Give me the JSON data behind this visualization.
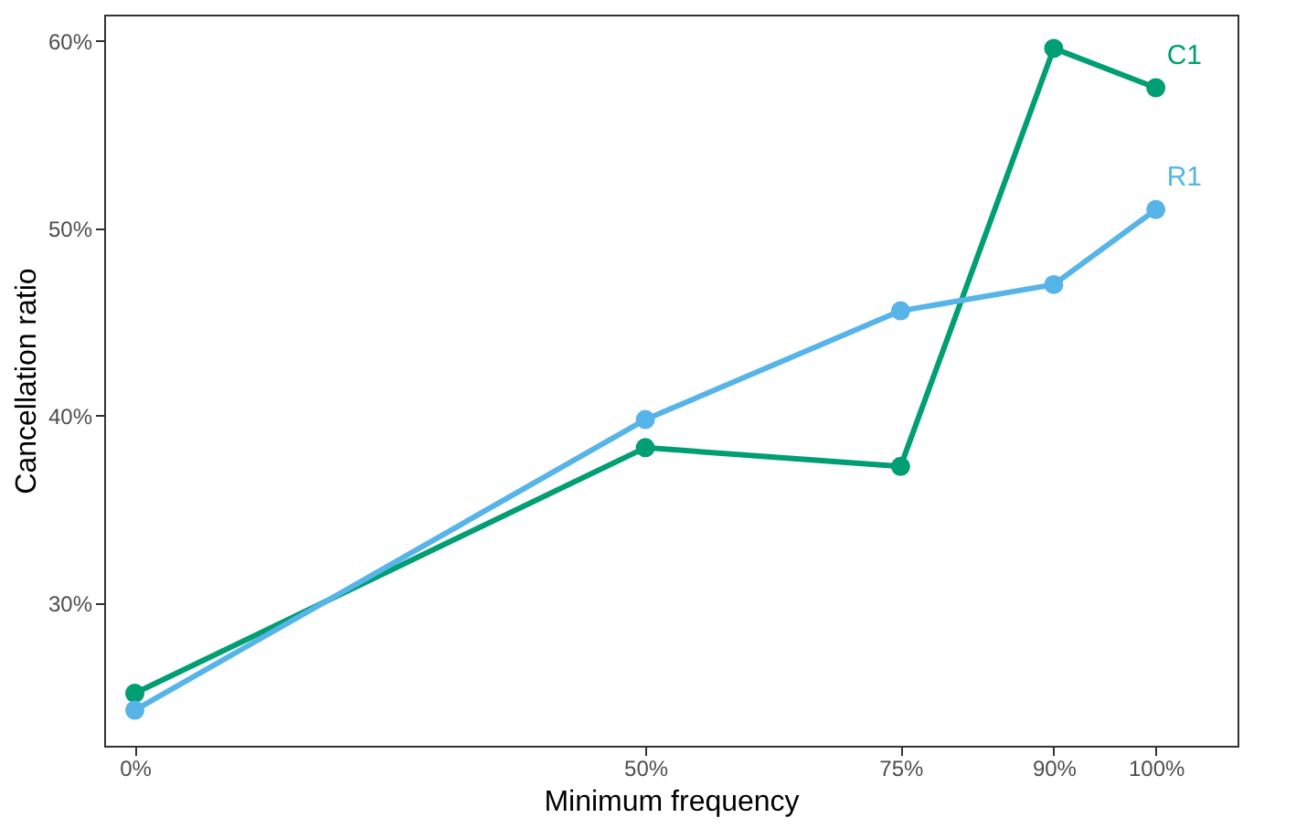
{
  "chart_data": {
    "type": "line",
    "xlabel": "Minimum frequency",
    "ylabel": "Cancellation ratio",
    "x": [
      0,
      50,
      75,
      90,
      100
    ],
    "series": [
      {
        "name": "C1",
        "color": "#009e73",
        "values": [
          25.2,
          38.3,
          37.3,
          59.6,
          57.5
        ]
      },
      {
        "name": "R1",
        "color": "#56b4e9",
        "values": [
          24.3,
          39.8,
          45.6,
          47.0,
          51.0
        ]
      }
    ],
    "xlim": [
      -3,
      108
    ],
    "ylim": [
      22.4,
      61.4
    ],
    "xticks": [
      {
        "value": 0,
        "label": "0%"
      },
      {
        "value": 50,
        "label": "50%"
      },
      {
        "value": 75,
        "label": "75%"
      },
      {
        "value": 90,
        "label": "90%"
      },
      {
        "value": 100,
        "label": "100%"
      }
    ],
    "yticks": [
      {
        "value": 30,
        "label": "30%"
      },
      {
        "value": 40,
        "label": "40%"
      },
      {
        "value": 50,
        "label": "50%"
      },
      {
        "value": 60,
        "label": "60%"
      }
    ],
    "grid": false,
    "marker": "circle",
    "line_style": "solid"
  }
}
